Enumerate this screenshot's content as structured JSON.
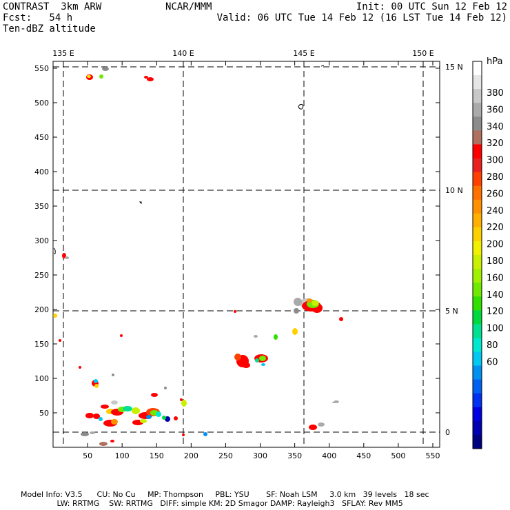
{
  "header": {
    "line1_left": "CONTRAST  3km ARW",
    "line1_mid": "NCAR/MMM",
    "line1_right": "Init: 00 UTC Sun 12 Feb 12",
    "line2_left": "Fcst:   54 h",
    "line2_right": "Valid: 06 UTC Tue 14 Feb 12 (16 LST Tue 14 Feb 12)",
    "line3_left": "Ten-dBZ altitude"
  },
  "map": {
    "lon_labels": [
      "135 E",
      "140 E",
      "145 E",
      "150 E"
    ],
    "lat_labels": [
      "15 N",
      "10 N",
      "5 N",
      "0"
    ],
    "x_ticks": [
      "50",
      "100",
      "150",
      "200",
      "250",
      "300",
      "350",
      "400",
      "450",
      "500",
      "550"
    ],
    "y_ticks": [
      "550",
      "500",
      "450",
      "400",
      "350",
      "300",
      "250",
      "200",
      "150",
      "100",
      "50"
    ],
    "x_range": [
      0,
      560
    ],
    "y_range": [
      0,
      560
    ]
  },
  "colorbar": {
    "unit": "hPa",
    "labels": [
      "380",
      "360",
      "340",
      "320",
      "300",
      "280",
      "260",
      "240",
      "220",
      "200",
      "180",
      "160",
      "140",
      "120",
      "100",
      "80",
      "60"
    ],
    "colors": [
      "#ffffff",
      "#e6e6e6",
      "#c8c8c8",
      "#aaaaaa",
      "#8c8c8c",
      "#b07060",
      "#ff0000",
      "#e82020",
      "#ff4000",
      "#ff7000",
      "#ff9000",
      "#ffb000",
      "#ffd000",
      "#f0f000",
      "#c8f000",
      "#a0f000",
      "#70e800",
      "#30e000",
      "#00d840",
      "#00e090",
      "#00e8d0",
      "#00c8f0",
      "#0090f0",
      "#0060f0",
      "#0030f0",
      "#0000e0",
      "#0000b0",
      "#000080"
    ]
  },
  "footer": {
    "line1": "Model Info: V3.5      CU: No Cu     MP: Thompson     PBL: YSU       SF: Noah LSM     3.0 km   39 levels   18 sec",
    "line2": "               LW: RRTMG    SW: RRTMG   DIFF: simple KM: 2D Smagor DAMP: Rayleigh3   SFLAY: Rev MM5"
  }
}
